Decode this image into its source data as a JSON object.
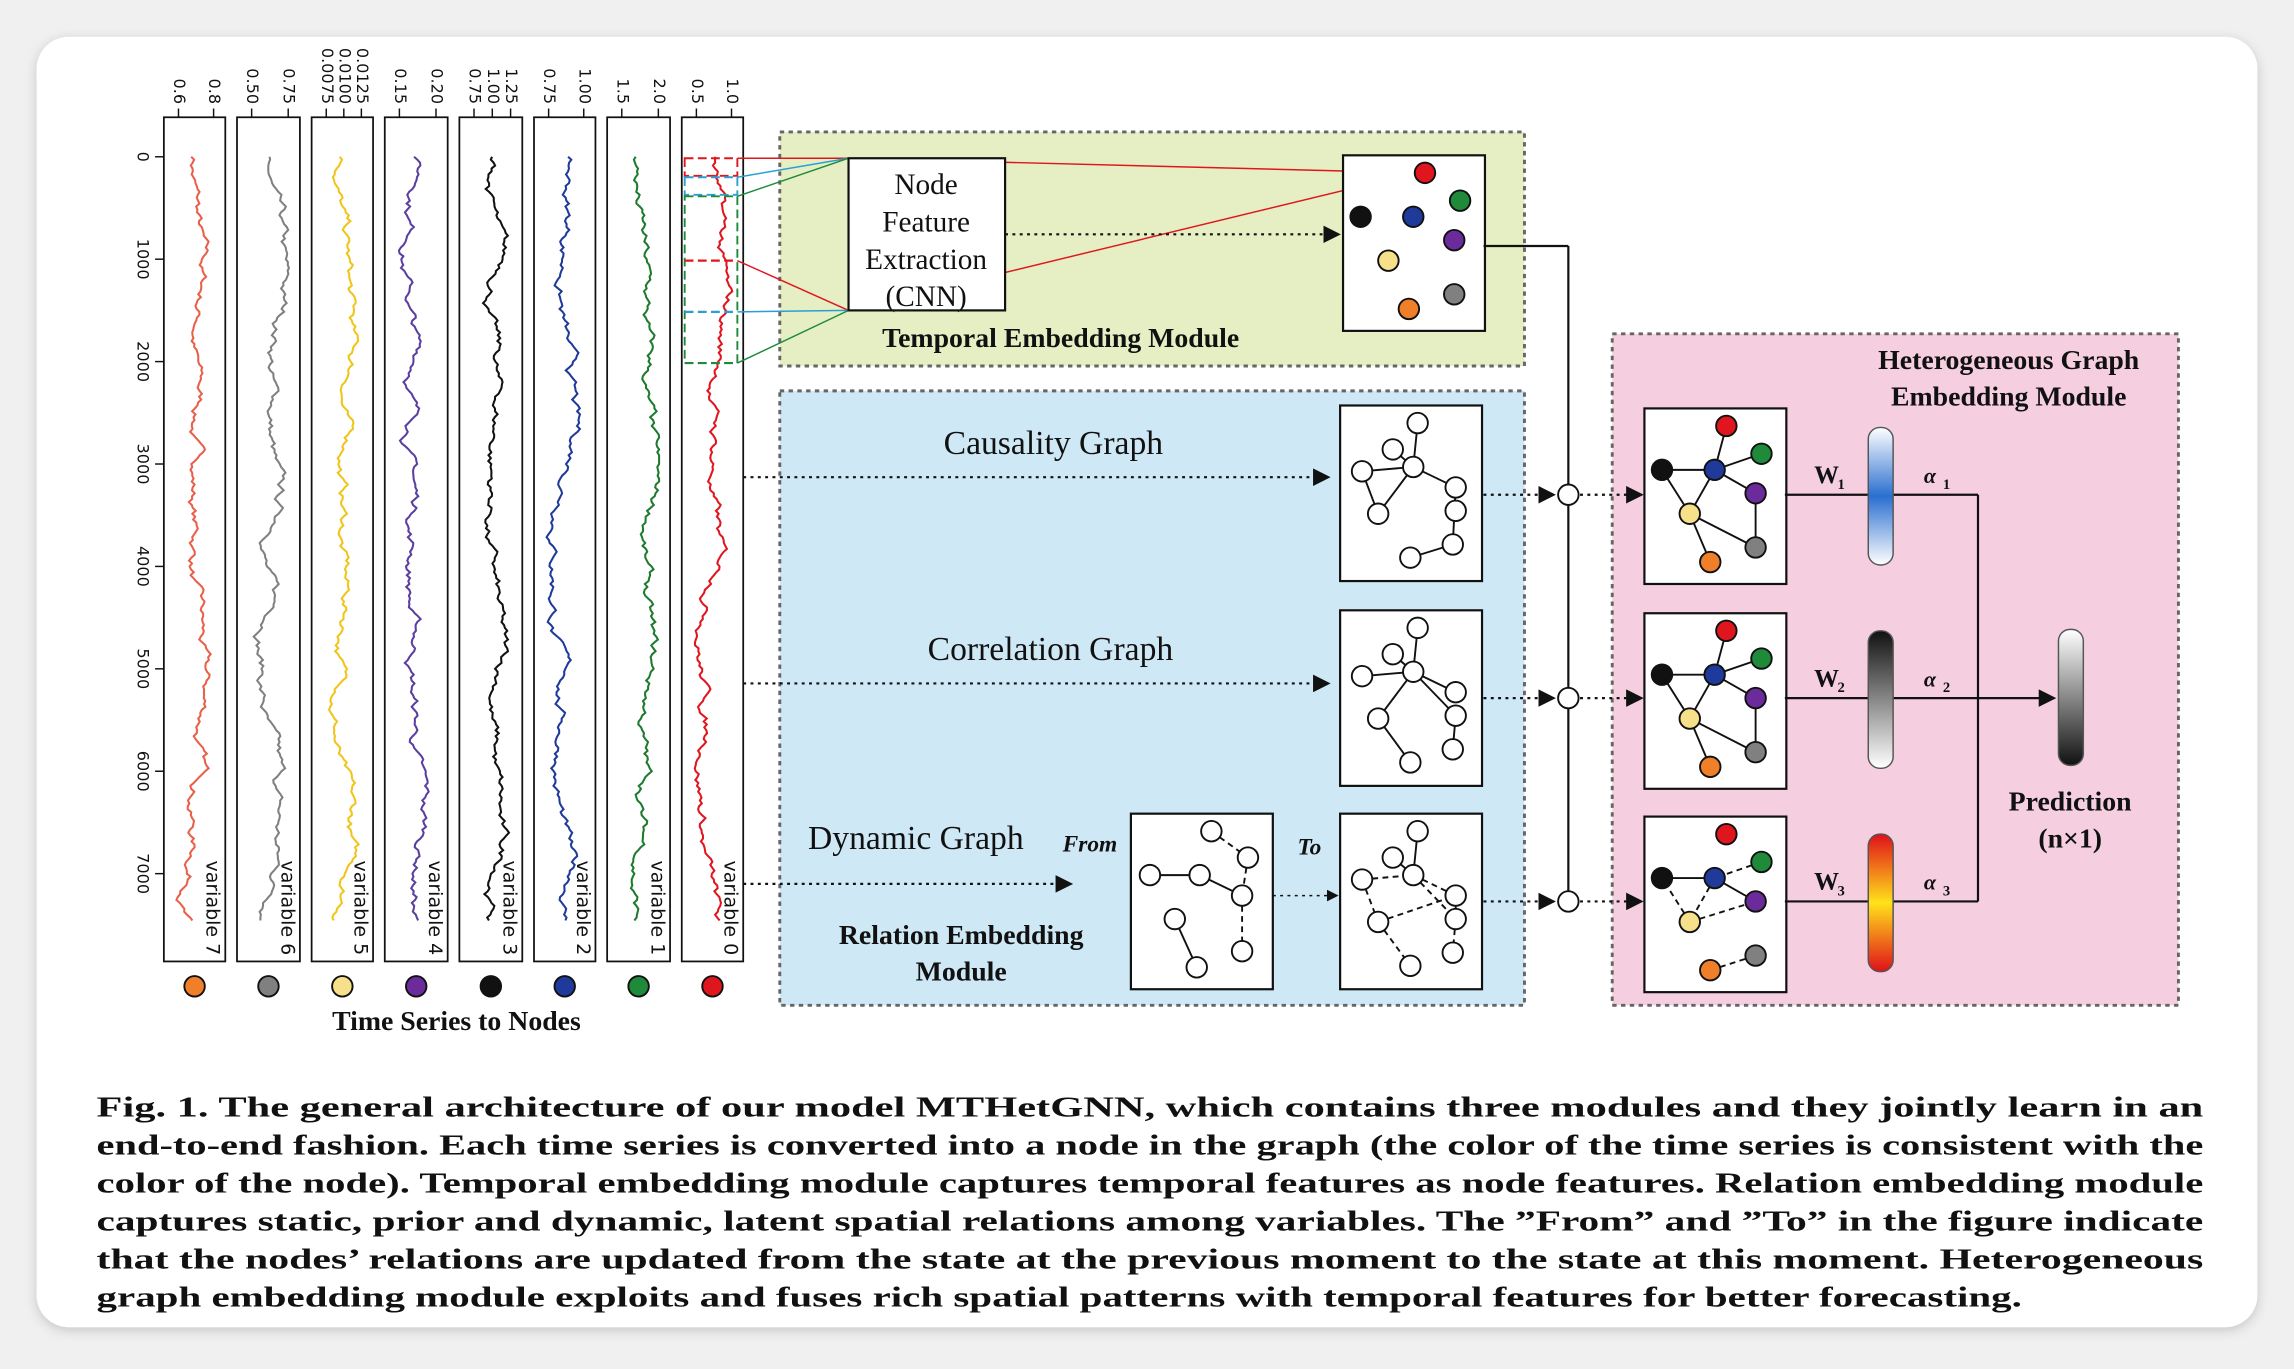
{
  "panels": [
    {
      "label": "variable 7",
      "ticks": [
        "0.6",
        "0.8"
      ]
    },
    {
      "label": "variable 6",
      "ticks": [
        "0.50",
        "0.75"
      ]
    },
    {
      "label": "variable 5",
      "ticks": [
        "0.0075",
        "0.0100",
        "0.0125"
      ]
    },
    {
      "label": "variable 4",
      "ticks": [
        "0.15",
        "0.20"
      ]
    },
    {
      "label": "variable 3",
      "ticks": [
        "0.75",
        "1.00",
        "1.25"
      ]
    },
    {
      "label": "variable 2",
      "ticks": [
        "0.75",
        "1.00"
      ]
    },
    {
      "label": "variable 1",
      "ticks": [
        "1.5",
        "2.0"
      ]
    },
    {
      "label": "variable 0",
      "ticks": [
        "0.5",
        "1.0"
      ]
    }
  ],
  "time_ticks": [
    "0",
    "1000",
    "2000",
    "3000",
    "4000",
    "5000",
    "6000",
    "7000"
  ],
  "time_series_caption": "Time Series to Nodes",
  "temporal": {
    "extractor": [
      "Node",
      "Feature",
      "Extraction",
      "(CNN)"
    ],
    "title": "Temporal Embedding Module"
  },
  "relation": {
    "causality": "Causality Graph",
    "correlation": "Correlation Graph",
    "dynamic": "Dynamic Graph",
    "from": "From",
    "to": "To",
    "title": [
      "Relation Embedding",
      "Module"
    ]
  },
  "hetero": {
    "title": [
      "Heterogeneous Graph",
      "Embedding Module"
    ],
    "weights": [
      {
        "w": "W",
        "w_sub": "1",
        "a": "α",
        "a_sub": "1"
      },
      {
        "w": "W",
        "w_sub": "2",
        "a": "α",
        "a_sub": "2"
      },
      {
        "w": "W",
        "w_sub": "3",
        "a": "α",
        "a_sub": "3"
      }
    ],
    "prediction": [
      "Prediction",
      "(n×1)"
    ]
  },
  "caption": [
    "Fig. 1. The general architecture of our model MTHetGNN, which contains three modules and they jointly learn in an",
    "end-to-end fashion. Each time series is converted into a node in the graph (the color of the time series is consistent with the",
    "color of the node). Temporal embedding module captures temporal features as node features. Relation embedding module",
    "captures static, prior and dynamic, latent spatial relations among variables. The ”From” and ”To” in the figure indicate",
    "that the nodes’ relations are updated from the state at the previous moment to the state at this moment. Heterogeneous",
    "graph embedding module exploits and fuses rich spatial patterns with temporal features for better forecasting."
  ]
}
